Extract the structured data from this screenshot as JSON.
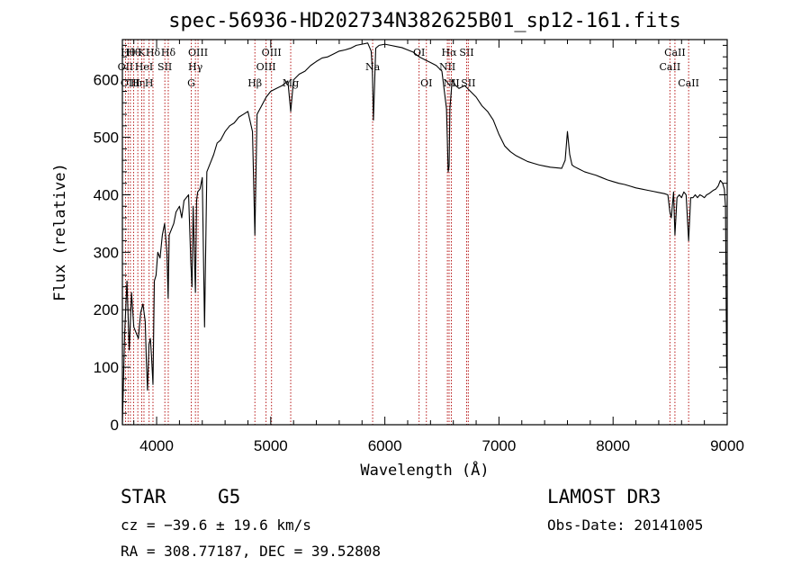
{
  "chart_data": {
    "type": "line",
    "title": "spec-56936-HD202734N382625B01_sp12-161.fits",
    "xlabel": "Wavelength (Å)",
    "ylabel": "Flux (relative)",
    "xlim": [
      3700,
      9000
    ],
    "ylim": [
      0,
      670
    ],
    "xticks": [
      4000,
      5000,
      6000,
      7000,
      8000,
      9000
    ],
    "yticks": [
      0,
      100,
      200,
      300,
      400,
      500,
      600
    ],
    "series": [
      {
        "name": "spectrum",
        "x": [
          3700,
          3720,
          3740,
          3760,
          3780,
          3800,
          3820,
          3840,
          3860,
          3880,
          3900,
          3910,
          3920,
          3933,
          3945,
          3955,
          3968,
          3980,
          3995,
          4010,
          4030,
          4050,
          4070,
          4090,
          4101,
          4110,
          4130,
          4150,
          4170,
          4200,
          4220,
          4240,
          4260,
          4280,
          4300,
          4310,
          4320,
          4340,
          4350,
          4360,
          4380,
          4400,
          4420,
          4440,
          4460,
          4480,
          4500,
          4530,
          4560,
          4600,
          4640,
          4680,
          4720,
          4760,
          4800,
          4840,
          4861,
          4880,
          4920,
          4960,
          5000,
          5050,
          5100,
          5150,
          5175,
          5200,
          5250,
          5300,
          5350,
          5400,
          5450,
          5500,
          5550,
          5600,
          5650,
          5700,
          5750,
          5800,
          5850,
          5880,
          5890,
          5900,
          5920,
          5950,
          6000,
          6050,
          6100,
          6150,
          6200,
          6250,
          6300,
          6350,
          6400,
          6450,
          6500,
          6540,
          6555,
          6563,
          6570,
          6590,
          6620,
          6650,
          6700,
          6750,
          6800,
          6850,
          6900,
          6950,
          7000,
          7050,
          7100,
          7150,
          7200,
          7250,
          7300,
          7350,
          7400,
          7450,
          7500,
          7550,
          7580,
          7600,
          7620,
          7640,
          7660,
          7700,
          7750,
          7800,
          7850,
          7900,
          7950,
          8000,
          8050,
          8100,
          8150,
          8200,
          8250,
          8300,
          8350,
          8400,
          8450,
          8480,
          8498,
          8510,
          8530,
          8542,
          8560,
          8580,
          8600,
          8620,
          8640,
          8662,
          8680,
          8700,
          8720,
          8740,
          8760,
          8780,
          8800,
          8820,
          8840,
          8860,
          8880,
          8900,
          8920,
          8940,
          8960,
          8975,
          8985,
          8995,
          9000
        ],
        "values": [
          0,
          160,
          250,
          130,
          230,
          170,
          160,
          150,
          195,
          210,
          180,
          110,
          60,
          140,
          150,
          120,
          70,
          250,
          260,
          300,
          290,
          330,
          350,
          300,
          220,
          330,
          340,
          350,
          370,
          380,
          360,
          390,
          395,
          400,
          280,
          240,
          380,
          230,
          390,
          405,
          410,
          430,
          170,
          440,
          450,
          460,
          470,
          490,
          495,
          510,
          520,
          525,
          535,
          540,
          545,
          510,
          330,
          540,
          555,
          570,
          580,
          585,
          590,
          598,
          545,
          600,
          610,
          615,
          625,
          632,
          638,
          640,
          645,
          650,
          652,
          655,
          660,
          662,
          664,
          650,
          620,
          530,
          655,
          660,
          662,
          660,
          658,
          656,
          652,
          648,
          640,
          635,
          630,
          625,
          615,
          550,
          440,
          450,
          550,
          600,
          590,
          585,
          590,
          580,
          570,
          555,
          545,
          530,
          505,
          485,
          475,
          468,
          463,
          458,
          455,
          452,
          450,
          448,
          447,
          446,
          460,
          510,
          470,
          452,
          449,
          445,
          440,
          437,
          434,
          430,
          426,
          423,
          420,
          418,
          415,
          412,
          410,
          408,
          406,
          404,
          402,
          400,
          370,
          360,
          405,
          330,
          395,
          400,
          395,
          405,
          400,
          320,
          395,
          395,
          400,
          395,
          400,
          398,
          395,
          400,
          402,
          405,
          408,
          410,
          415,
          425,
          420,
          410,
          380,
          100,
          80
        ]
      }
    ],
    "vlines": [
      {
        "wl": 3727,
        "label": "OII",
        "row": 2
      },
      {
        "wl": 3750,
        "label": "Hθ",
        "row": 1
      },
      {
        "wl": 3770,
        "label": "OIII",
        "row": 3
      },
      {
        "wl": 3798,
        "label": "Hθ",
        "row": 1
      },
      {
        "wl": 3835,
        "label": "Hη",
        "row": 3
      },
      {
        "wl": 3869,
        "label": "K",
        "row": 1
      },
      {
        "wl": 3889,
        "label": "HeI",
        "row": 2
      },
      {
        "wl": 3934,
        "label": "H",
        "row": 3
      },
      {
        "wl": 3968,
        "label": "Hδ",
        "row": 1
      },
      {
        "wl": 4072,
        "label": "SII",
        "row": 2
      },
      {
        "wl": 4102,
        "label": "Hδ",
        "row": 1
      },
      {
        "wl": 4304,
        "label": "G",
        "row": 3
      },
      {
        "wl": 4340,
        "label": "Hγ",
        "row": 2
      },
      {
        "wl": 4363,
        "label": "OIII",
        "row": 1
      },
      {
        "wl": 4861,
        "label": "Hβ",
        "row": 3
      },
      {
        "wl": 4959,
        "label": "OIII",
        "row": 2
      },
      {
        "wl": 5007,
        "label": "OIII",
        "row": 1
      },
      {
        "wl": 5175,
        "label": "Mg",
        "row": 3
      },
      {
        "wl": 5893,
        "label": "Na",
        "row": 2
      },
      {
        "wl": 6300,
        "label": "OI",
        "row": 1
      },
      {
        "wl": 6364,
        "label": "OI",
        "row": 3
      },
      {
        "wl": 6548,
        "label": "NII",
        "row": 2
      },
      {
        "wl": 6563,
        "label": "Hα",
        "row": 1
      },
      {
        "wl": 6583,
        "label": "NII",
        "row": 3
      },
      {
        "wl": 6717,
        "label": "SII",
        "row": 1
      },
      {
        "wl": 6731,
        "label": "SII",
        "row": 3
      },
      {
        "wl": 8498,
        "label": "CaII",
        "row": 2
      },
      {
        "wl": 8542,
        "label": "CaII",
        "row": 1
      },
      {
        "wl": 8662,
        "label": "CaII",
        "row": 3
      }
    ]
  },
  "info": {
    "class_text": "STAR",
    "subclass_text": "G5",
    "survey": "LAMOST DR3",
    "cz": "cz = −39.6 ± 19.6 km/s",
    "obs_date": "Obs-Date: 20141005",
    "coords": "RA = 308.77187, DEC =  39.52808"
  },
  "colors": {
    "line": "#000000",
    "vline": "#b00000",
    "background": "#ffffff"
  }
}
